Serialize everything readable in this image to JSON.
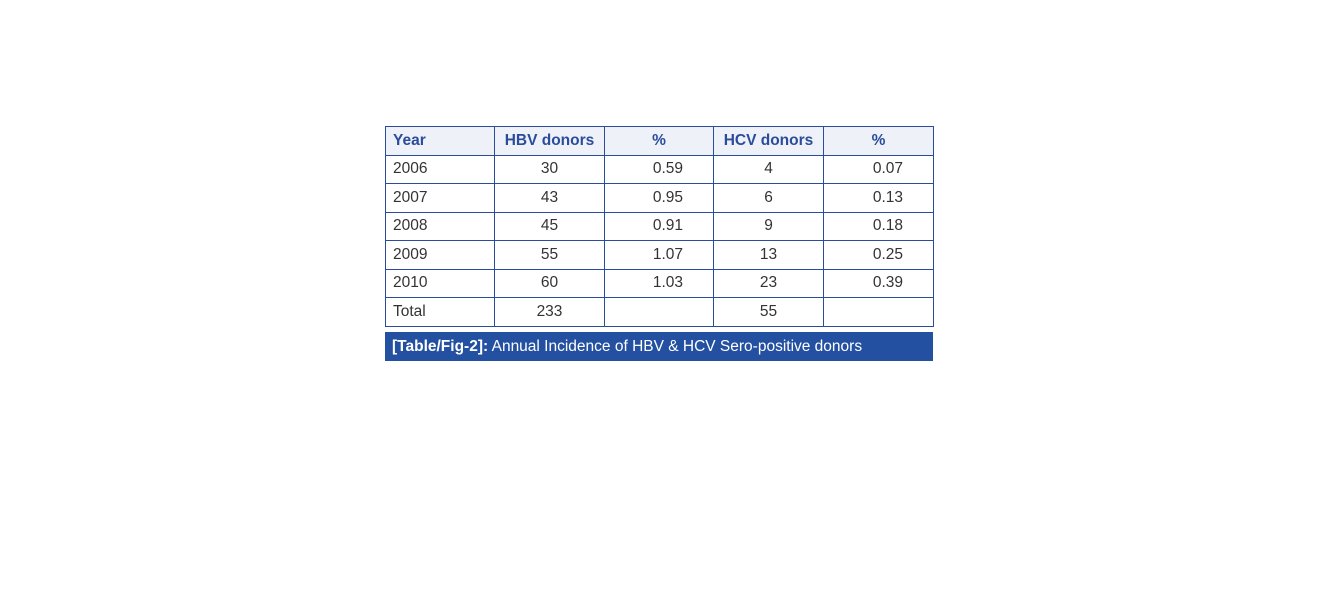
{
  "table": {
    "headers": [
      "Year",
      "HBV donors",
      "%",
      "HCV donors",
      "%"
    ],
    "rows": [
      [
        "2006",
        "30",
        "0.59",
        "4",
        "0.07"
      ],
      [
        "2007",
        "43",
        "0.95",
        "6",
        "0.13"
      ],
      [
        "2008",
        "45",
        "0.91",
        "9",
        "0.18"
      ],
      [
        "2009",
        "55",
        "1.07",
        "13",
        "0.25"
      ],
      [
        "2010",
        "60",
        "1.03",
        "23",
        "0.39"
      ],
      [
        "Total",
        "233",
        "",
        "55",
        ""
      ]
    ]
  },
  "caption": {
    "label": "[Table/Fig-2]:",
    "text": " Annual Incidence of HBV & HCV Sero-positive donors"
  }
}
